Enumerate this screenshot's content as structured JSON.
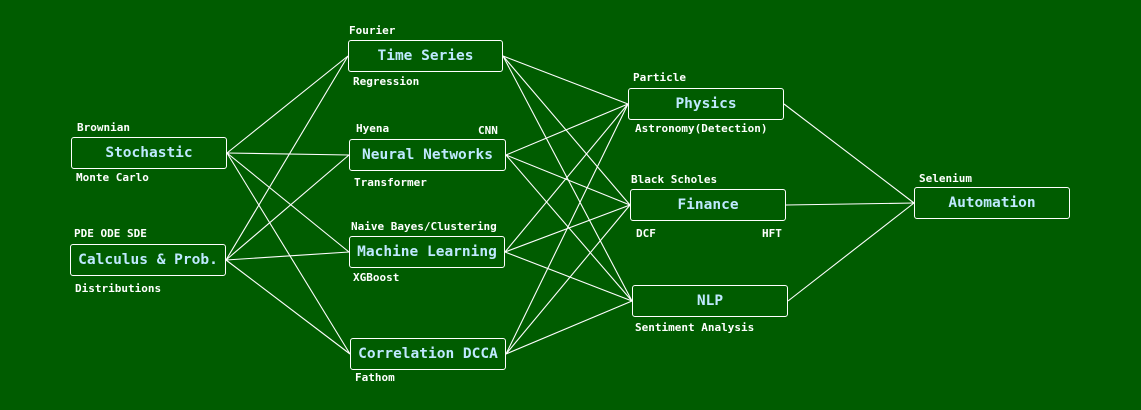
{
  "nodes": {
    "stochastic": "Stochastic",
    "calculus": "Calculus & Prob.",
    "time_series": "Time Series",
    "neural_networks": "Neural Networks",
    "machine_learning": "Machine Learning",
    "correlation": "Correlation DCCA",
    "physics": "Physics",
    "finance": "Finance",
    "nlp": "NLP",
    "automation": "Automation"
  },
  "labels": {
    "brownian": "Brownian",
    "monte_carlo": "Monte Carlo",
    "pde_ode_sde": "PDE ODE SDE",
    "distributions": "Distributions",
    "fourier": "Fourier",
    "regression": "Regression",
    "hyena": "Hyena",
    "cnn": "CNN",
    "transformer": "Transformer",
    "naive_bayes": "Naive Bayes/Clustering",
    "xgboost": "XGBoost",
    "fathom": "Fathom",
    "particle": "Particle",
    "astronomy": "Astronomy(Detection)",
    "black_scholes": "Black Scholes",
    "dcf": "DCF",
    "hft": "HFT",
    "sentiment": "Sentiment Analysis",
    "selenium": "Selenium"
  },
  "edges": [
    [
      "stochastic",
      "time_series"
    ],
    [
      "stochastic",
      "neural_networks"
    ],
    [
      "stochastic",
      "machine_learning"
    ],
    [
      "stochastic",
      "correlation"
    ],
    [
      "calculus",
      "time_series"
    ],
    [
      "calculus",
      "neural_networks"
    ],
    [
      "calculus",
      "machine_learning"
    ],
    [
      "calculus",
      "correlation"
    ],
    [
      "time_series",
      "physics"
    ],
    [
      "time_series",
      "finance"
    ],
    [
      "time_series",
      "nlp"
    ],
    [
      "neural_networks",
      "physics"
    ],
    [
      "neural_networks",
      "finance"
    ],
    [
      "neural_networks",
      "nlp"
    ],
    [
      "machine_learning",
      "physics"
    ],
    [
      "machine_learning",
      "finance"
    ],
    [
      "machine_learning",
      "nlp"
    ],
    [
      "correlation",
      "physics"
    ],
    [
      "correlation",
      "finance"
    ],
    [
      "correlation",
      "nlp"
    ],
    [
      "physics",
      "automation"
    ],
    [
      "finance",
      "automation"
    ],
    [
      "nlp",
      "automation"
    ]
  ],
  "colors": {
    "background": "#005c00",
    "node_text": "#bfe9ff",
    "line": "#ffffff"
  }
}
